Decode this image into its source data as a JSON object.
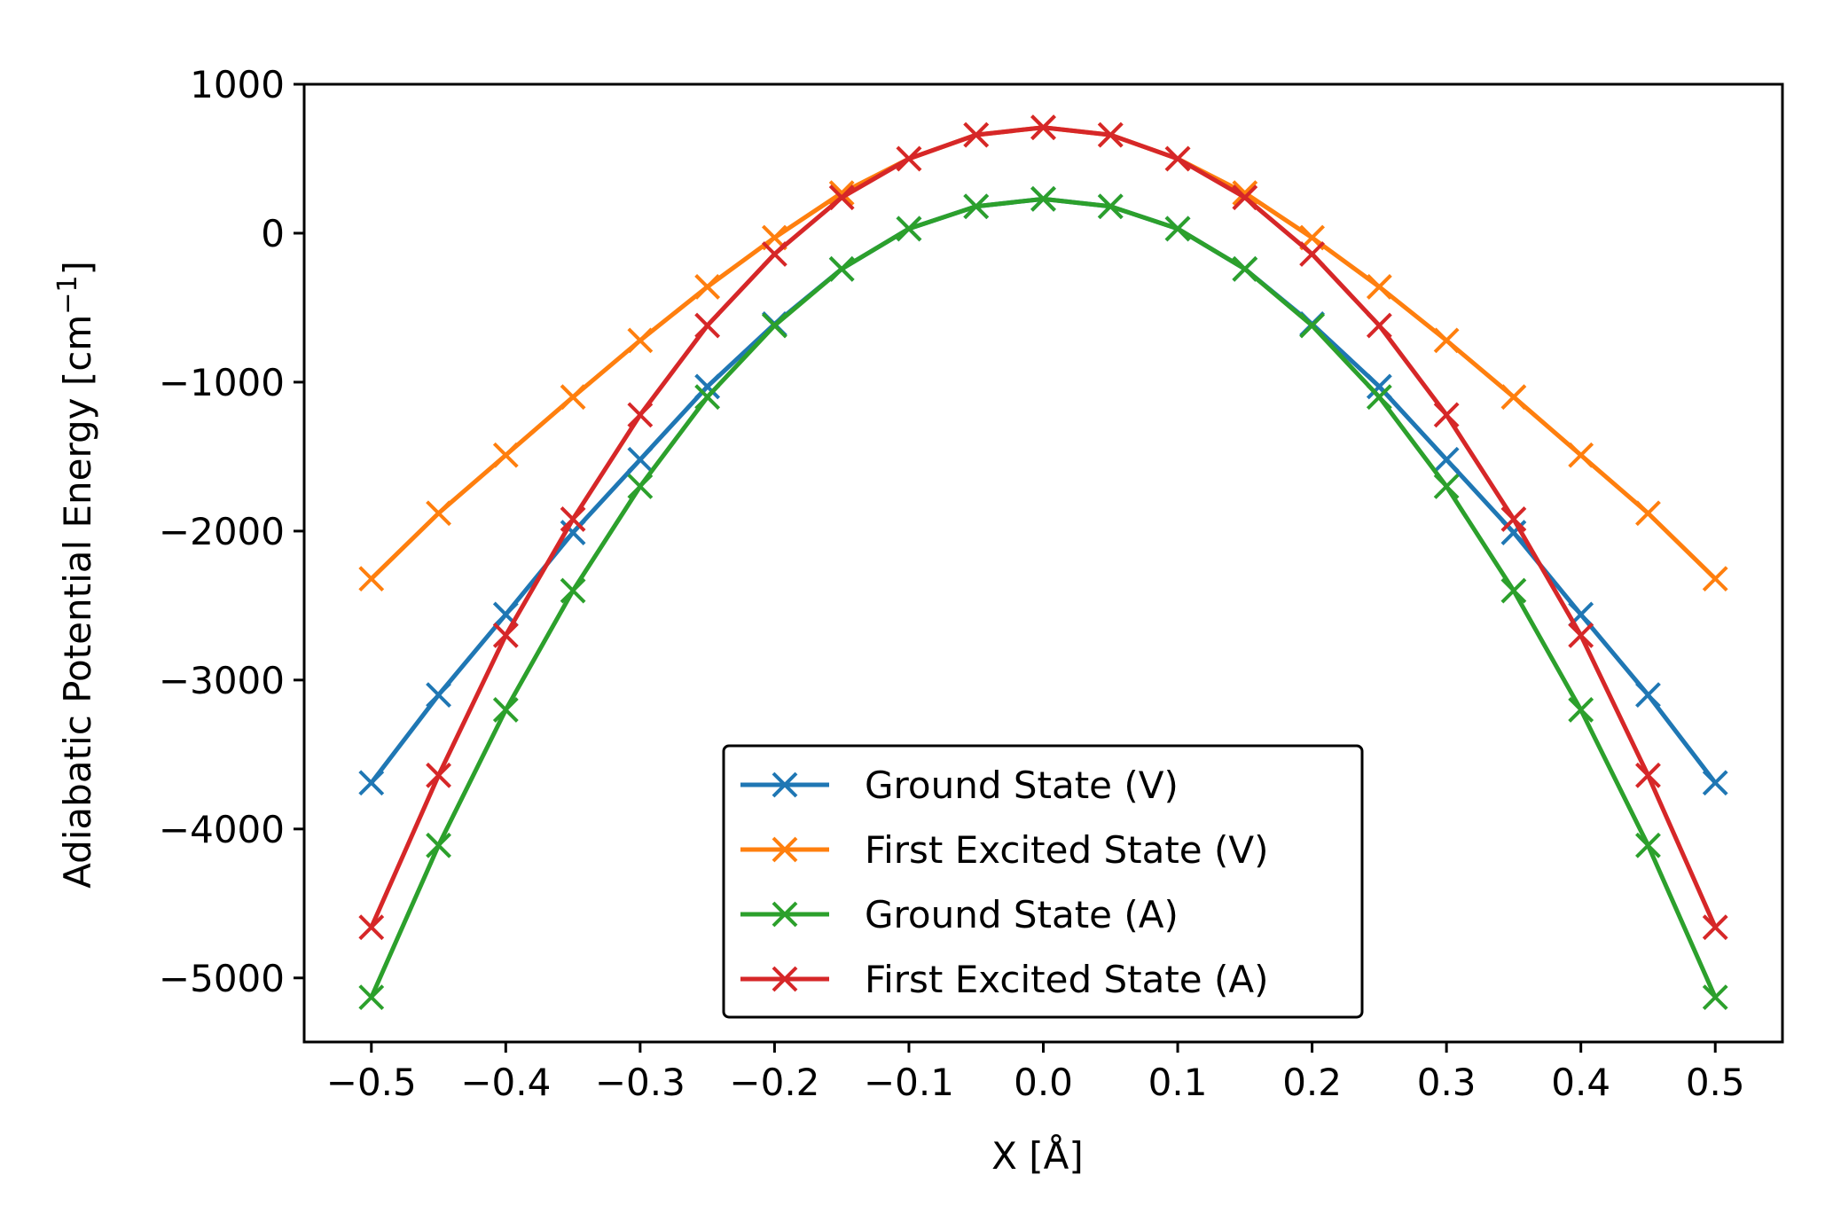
{
  "chart_data": {
    "type": "line",
    "title": "",
    "xlabel": "X [Å]",
    "ylabel": "Adiabatic Potential Energy [cm",
    "ylabel_sup": "−1",
    "ylabel_end": "]",
    "xlim": [
      -0.55,
      0.55
    ],
    "ylim": [
      -5430,
      1000
    ],
    "xticks": [
      -0.5,
      -0.4,
      -0.3,
      -0.2,
      -0.1,
      0.0,
      0.1,
      0.2,
      0.3,
      0.4,
      0.5
    ],
    "xtick_labels": [
      "−0.5",
      "−0.4",
      "−0.3",
      "−0.2",
      "−0.1",
      "0.0",
      "0.1",
      "0.2",
      "0.3",
      "0.4",
      "0.5"
    ],
    "yticks": [
      1000,
      0,
      -1000,
      -2000,
      -3000,
      -4000,
      -5000
    ],
    "ytick_labels": [
      "1000",
      "0",
      "−1000",
      "−2000",
      "−3000",
      "−4000",
      "−5000"
    ],
    "grid": false,
    "legend_position": "bottom-center",
    "marker": "x",
    "x": [
      -0.5,
      -0.45,
      -0.4,
      -0.35,
      -0.3,
      -0.25,
      -0.2,
      -0.15,
      -0.1,
      -0.05,
      0.0,
      0.05,
      0.1,
      0.15,
      0.2,
      0.25,
      0.3,
      0.35,
      0.4,
      0.45,
      0.5
    ],
    "series": [
      {
        "name": "Ground State (V)",
        "color": "#1f77b4",
        "values": [
          -3690,
          -3100,
          -2560,
          -2010,
          -1520,
          -1030,
          -610,
          -240,
          30,
          180,
          230,
          180,
          30,
          -240,
          -610,
          -1030,
          -1520,
          -2010,
          -2560,
          -3100,
          -3690
        ]
      },
      {
        "name": "First Excited State (V)",
        "color": "#ff7f0e",
        "values": [
          -2320,
          -1880,
          -1490,
          -1100,
          -720,
          -360,
          -30,
          270,
          500,
          660,
          710,
          660,
          500,
          270,
          -30,
          -360,
          -720,
          -1100,
          -1490,
          -1880,
          -2320
        ]
      },
      {
        "name": "Ground State (A)",
        "color": "#2ca02c",
        "values": [
          -5130,
          -4110,
          -3200,
          -2400,
          -1700,
          -1100,
          -620,
          -240,
          30,
          180,
          230,
          180,
          30,
          -240,
          -620,
          -1100,
          -1700,
          -2400,
          -3200,
          -4110,
          -5130
        ]
      },
      {
        "name": "First Excited State (A)",
        "color": "#d62728",
        "values": [
          -4660,
          -3640,
          -2700,
          -1920,
          -1220,
          -620,
          -140,
          240,
          500,
          660,
          710,
          660,
          500,
          240,
          -140,
          -620,
          -1220,
          -1920,
          -2700,
          -3640,
          -4660
        ]
      }
    ]
  }
}
